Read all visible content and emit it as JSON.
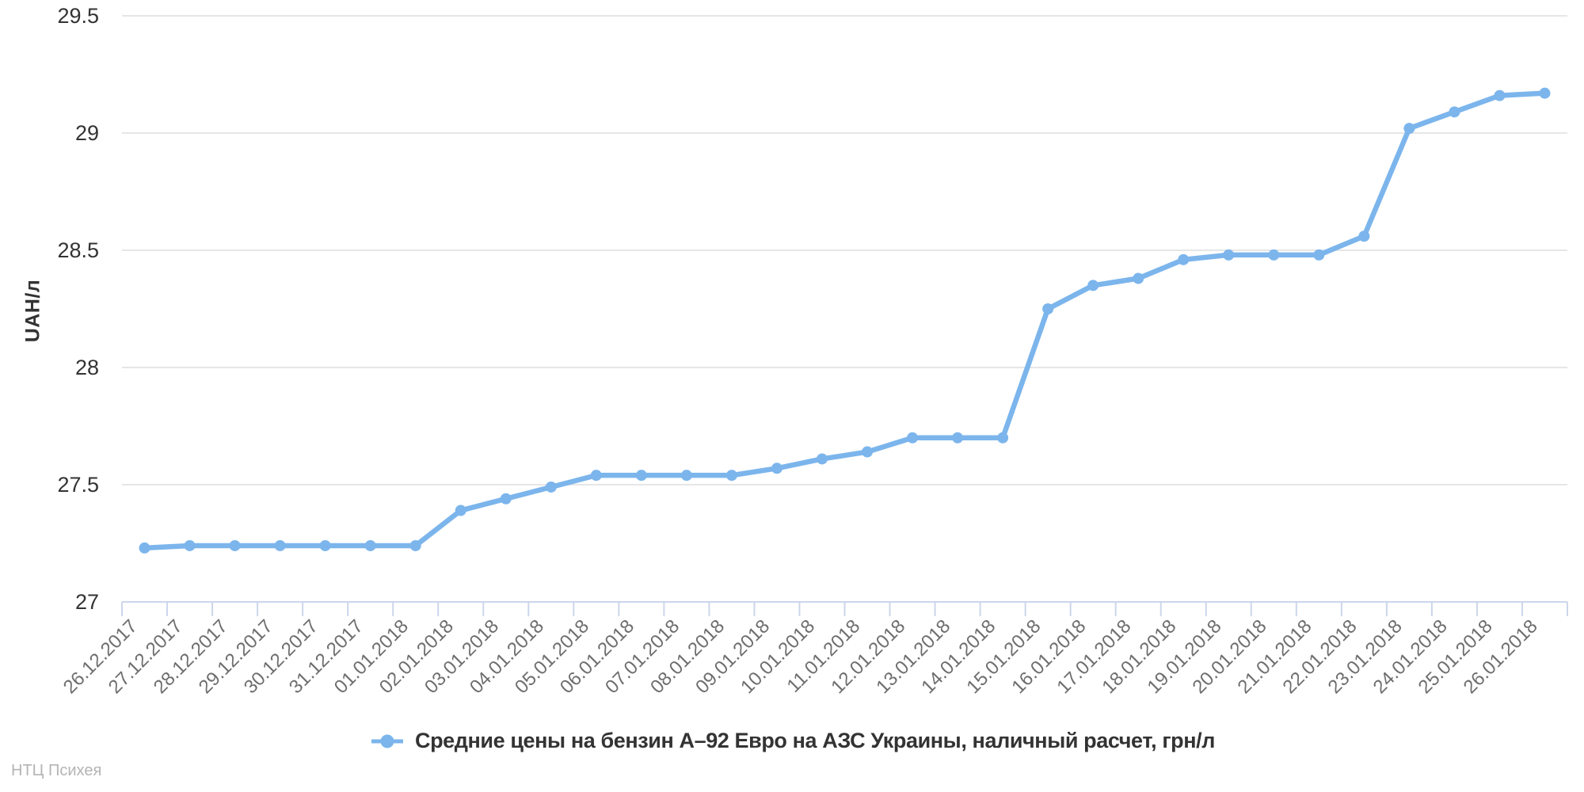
{
  "chart_data": {
    "type": "line",
    "title": "",
    "xlabel": "",
    "ylabel": "UAH/л",
    "ylim": [
      27,
      29.5
    ],
    "yticks": [
      27,
      27.5,
      28,
      28.5,
      29,
      29.5
    ],
    "grid": true,
    "legend_position": "bottom-center",
    "categories": [
      "26.12.2017",
      "27.12.2017",
      "28.12.2017",
      "29.12.2017",
      "30.12.2017",
      "31.12.2017",
      "01.01.2018",
      "02.01.2018",
      "03.01.2018",
      "04.01.2018",
      "05.01.2018",
      "06.01.2018",
      "07.01.2018",
      "08.01.2018",
      "09.01.2018",
      "10.01.2018",
      "11.01.2018",
      "12.01.2018",
      "13.01.2018",
      "14.01.2018",
      "15.01.2018",
      "16.01.2018",
      "17.01.2018",
      "18.01.2018",
      "19.01.2018",
      "20.01.2018",
      "21.01.2018",
      "22.01.2018",
      "23.01.2018",
      "24.01.2018",
      "25.01.2018",
      "26.01.2018"
    ],
    "series": [
      {
        "name": "Средние цены на бензин А–92 Евро на АЗС Украины, наличный расчет, грн/л",
        "values": [
          27.23,
          27.24,
          27.24,
          27.24,
          27.24,
          27.24,
          27.24,
          27.39,
          27.44,
          27.49,
          27.54,
          27.54,
          27.54,
          27.54,
          27.57,
          27.61,
          27.64,
          27.7,
          27.7,
          27.7,
          28.25,
          28.35,
          28.38,
          28.46,
          28.48,
          28.48,
          28.48,
          28.56,
          29.02,
          29.09,
          29.16,
          29.17
        ]
      }
    ],
    "colors": {
      "series": "#7cb5ec",
      "grid": "#e6e6e6",
      "axis_line": "#ccd6eb",
      "tick": "#ccd6eb",
      "x_label": "#6e6e6e",
      "y_label": "#333333",
      "legend_text": "#333333",
      "footer_text": "#b4b4b4"
    }
  },
  "footer": {
    "source_label": "НТЦ Психея"
  }
}
